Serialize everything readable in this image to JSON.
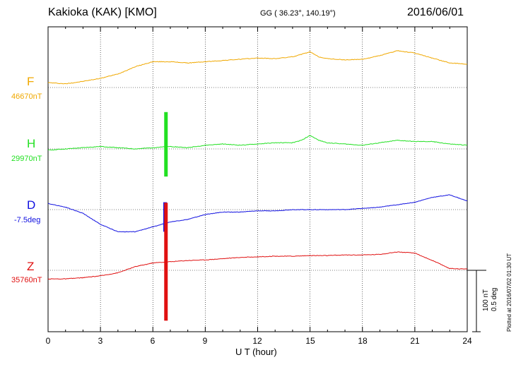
{
  "header": {
    "title": "Kakioka (KAK)  [KMO]",
    "coords": "GG ( 36.23°, 140.19°)",
    "date": "2016/06/01"
  },
  "components": [
    {
      "name": "F",
      "baseline": "46670nT",
      "color": "#f0a800"
    },
    {
      "name": "H",
      "baseline": "29970nT",
      "color": "#22e022"
    },
    {
      "name": "D",
      "baseline": "-7.5deg",
      "color": "#1010e0"
    },
    {
      "name": "Z",
      "baseline": "35760nT",
      "color": "#e01010"
    }
  ],
  "x_ticks": [
    "0",
    "3",
    "6",
    "9",
    "12",
    "15",
    "18",
    "21",
    "24"
  ],
  "xlabel": "U T (hour)",
  "scale": {
    "line1": "100 nT",
    "line2": "0.5 deg"
  },
  "plotted": "Plotted at 2016/07/02 01:30 UT",
  "chart_data": {
    "type": "line",
    "title": "Kakioka (KAK)  [KMO]",
    "xlabel": "U T (hour)",
    "xlim": [
      0,
      24
    ],
    "x_ticks": [
      0,
      3,
      6,
      9,
      12,
      15,
      18,
      21,
      24
    ],
    "grid": true,
    "scale_bar": {
      "nT": 100,
      "deg": 0.5
    },
    "series": [
      {
        "name": "F",
        "baseline": "46670nT",
        "unit": "nT",
        "color": "#f0a800",
        "x": [
          0,
          1,
          2,
          3,
          4,
          5,
          6,
          7,
          8,
          9,
          10,
          11,
          12,
          13,
          14,
          14.5,
          15,
          15.5,
          16,
          17,
          18,
          19,
          20,
          21,
          22,
          23,
          24
        ],
        "y": [
          8,
          6,
          10,
          15,
          22,
          34,
          42,
          42,
          40,
          42,
          44,
          46,
          48,
          47,
          50,
          54,
          58,
          50,
          47,
          45,
          46,
          52,
          60,
          56,
          48,
          40,
          38
        ]
      },
      {
        "name": "H",
        "baseline": "29970nT",
        "unit": "nT",
        "color": "#22e022",
        "x": [
          0,
          1,
          2,
          3,
          4,
          5,
          6,
          7,
          8,
          9,
          10,
          11,
          12,
          13,
          14,
          14.5,
          15,
          15.5,
          16,
          17,
          18,
          19,
          20,
          21,
          22,
          23,
          24
        ],
        "y": [
          -2,
          0,
          2,
          4,
          2,
          0,
          2,
          4,
          2,
          6,
          8,
          6,
          8,
          10,
          10,
          14,
          22,
          14,
          10,
          8,
          6,
          10,
          14,
          12,
          12,
          8,
          6
        ],
        "burst": {
          "x": 6.75,
          "min": -45,
          "max": 60
        }
      },
      {
        "name": "D",
        "baseline": "-7.5deg",
        "unit": "deg",
        "color": "#1010e0",
        "x": [
          0,
          1,
          2,
          3,
          4,
          5,
          6,
          7,
          8,
          9,
          10,
          11,
          12,
          13,
          14,
          15,
          16,
          17,
          18,
          19,
          20,
          21,
          22,
          23,
          24
        ],
        "y": [
          0.05,
          0.02,
          -0.03,
          -0.12,
          -0.18,
          -0.18,
          -0.14,
          -0.1,
          -0.08,
          -0.04,
          -0.02,
          -0.02,
          -0.01,
          -0.01,
          0.0,
          0.0,
          0.0,
          0.0,
          0.01,
          0.02,
          0.04,
          0.06,
          0.1,
          0.12,
          0.07
        ],
        "burst": {
          "x": 6.7,
          "min": -0.18,
          "max": 0.06
        }
      },
      {
        "name": "Z",
        "baseline": "35760nT",
        "unit": "nT",
        "color": "#e01010",
        "x": [
          0,
          1,
          2,
          3,
          4,
          5,
          6,
          7,
          8,
          9,
          10,
          11,
          12,
          13,
          14,
          15,
          16,
          17,
          18,
          19,
          20,
          21,
          22,
          23,
          24
        ],
        "y": [
          -14,
          -14,
          -12,
          -9,
          -4,
          6,
          12,
          14,
          16,
          17,
          19,
          21,
          22,
          23,
          23,
          24,
          24,
          25,
          25,
          26,
          30,
          28,
          16,
          3,
          2
        ],
        "burst": {
          "x": 6.75,
          "min": -82,
          "max": 110
        }
      }
    ]
  }
}
